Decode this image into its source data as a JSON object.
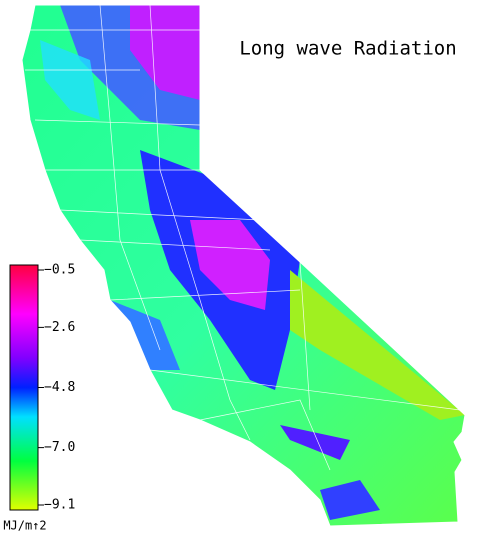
{
  "title": "Long wave Radiation",
  "colorbar": {
    "label": "MJ/m↑2",
    "ticks": [
      {
        "value": -0.5,
        "label": "−0.5"
      },
      {
        "value": -2.6,
        "label": "−2.6"
      },
      {
        "value": -4.8,
        "label": "−4.8"
      },
      {
        "value": -7.0,
        "label": "−7.0"
      },
      {
        "value": -9.1,
        "label": "−9.1"
      }
    ]
  }
}
